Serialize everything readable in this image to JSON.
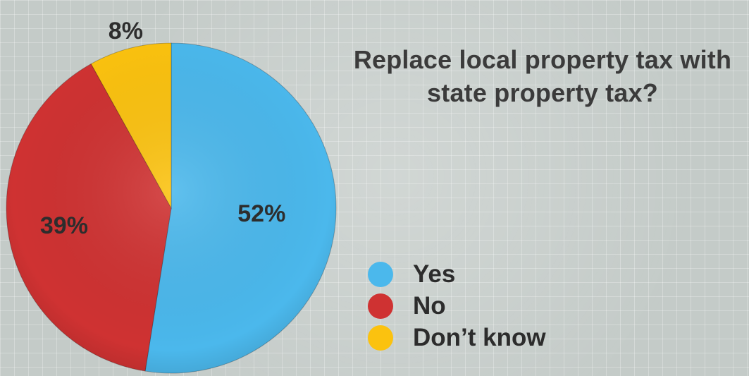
{
  "chart_data": {
    "type": "pie",
    "title": "Replace local property tax with state property tax?",
    "categories": [
      "Yes",
      "No",
      "Don’t know"
    ],
    "values": [
      52,
      39,
      8
    ],
    "labels": [
      "52%",
      "39%",
      "8%"
    ],
    "colors": [
      "#4bb8ec",
      "#cf3232",
      "#fbc20f"
    ],
    "legend_position": "right"
  },
  "legend": {
    "items": [
      {
        "label": "Yes",
        "color": "#4bb8ec"
      },
      {
        "label": "No",
        "color": "#cf3232"
      },
      {
        "label": "Don’t know",
        "color": "#fbc20f"
      }
    ]
  }
}
